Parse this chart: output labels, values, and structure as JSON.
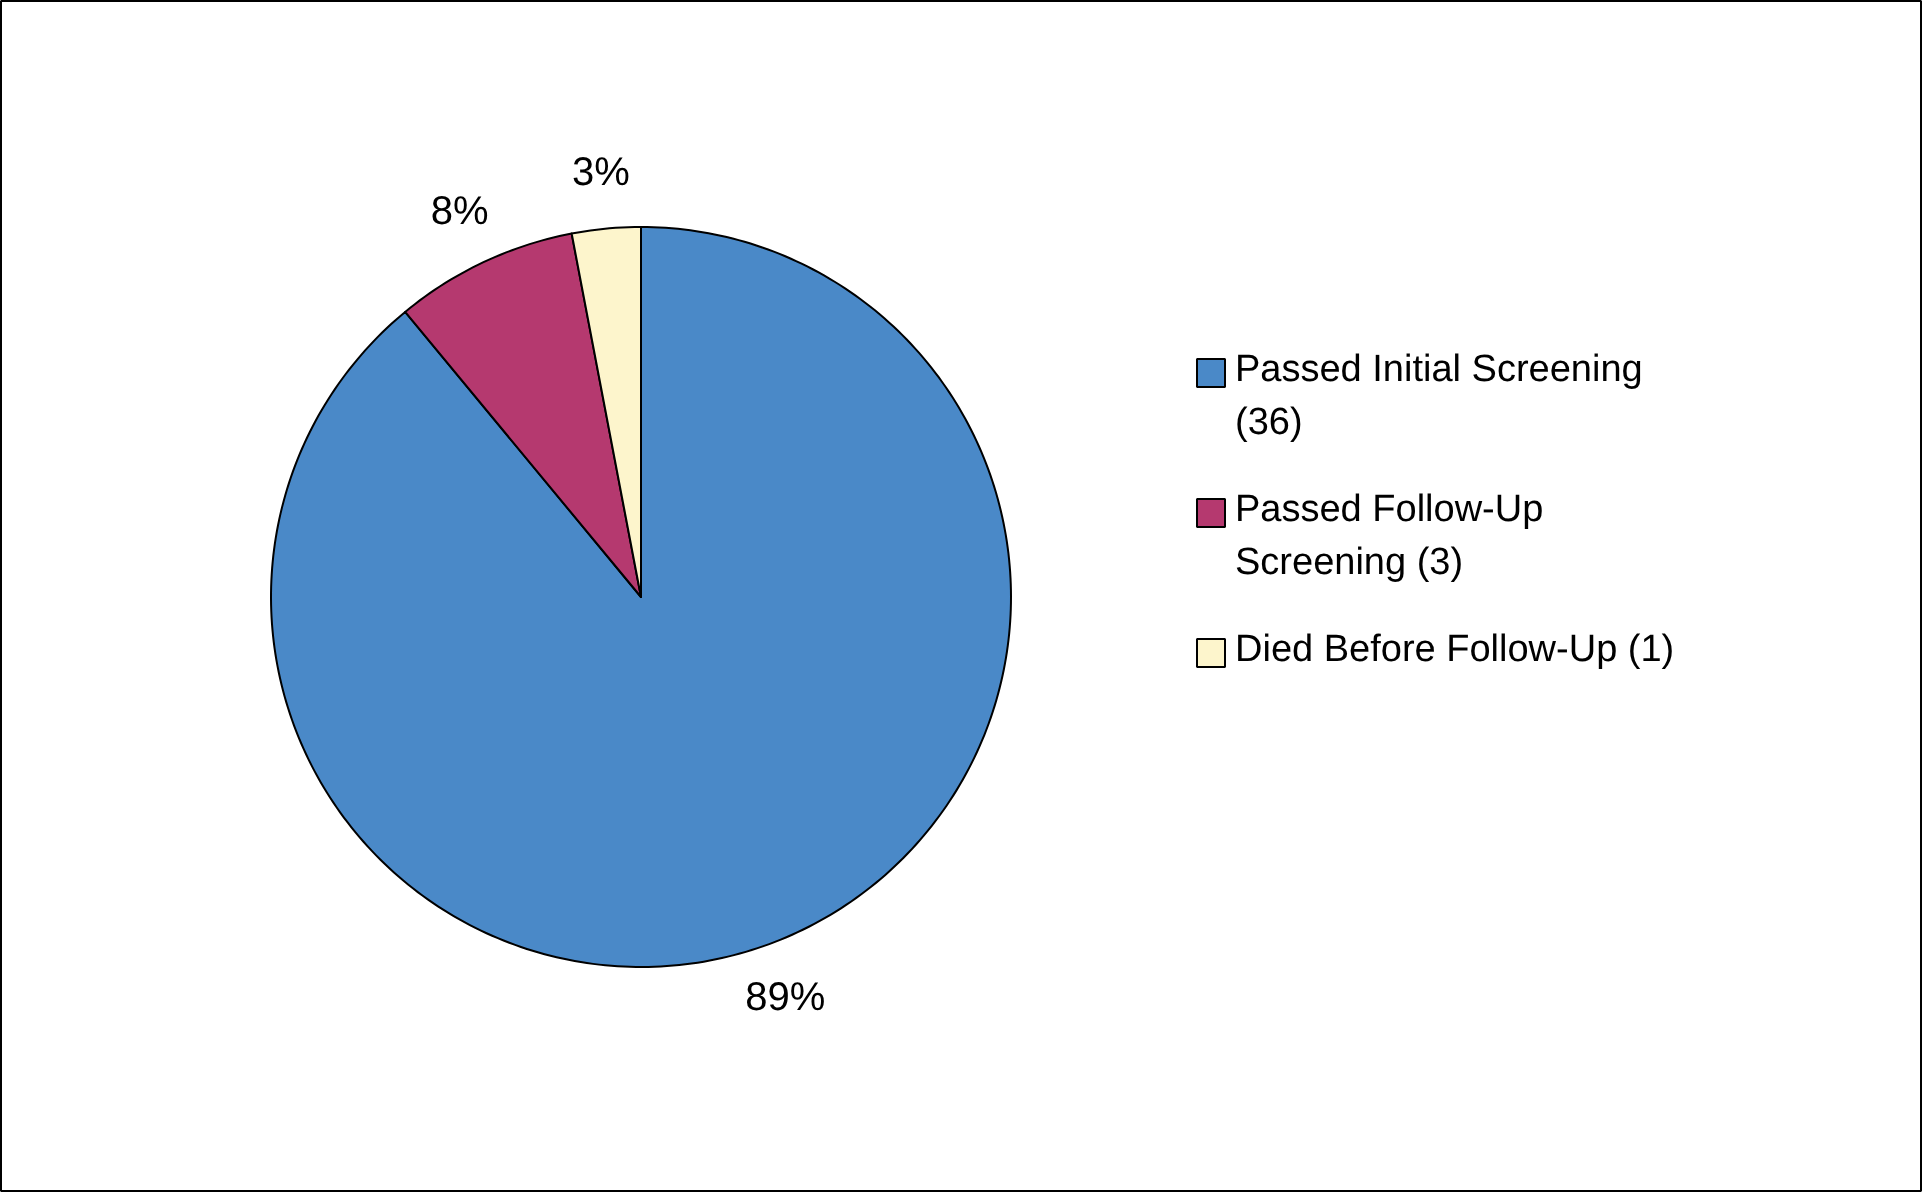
{
  "chart_data": {
    "type": "pie",
    "categories": [
      "Passed Initial Screening (36)",
      "Passed Follow-Up Screening (3)",
      "Died Before Follow-Up (1)"
    ],
    "values": [
      89,
      8,
      3
    ],
    "colors": [
      "#4a89c8",
      "#b5396f",
      "#fdf5cc"
    ],
    "value_labels": [
      "89%",
      "8%",
      "3%"
    ],
    "legend": "right"
  }
}
